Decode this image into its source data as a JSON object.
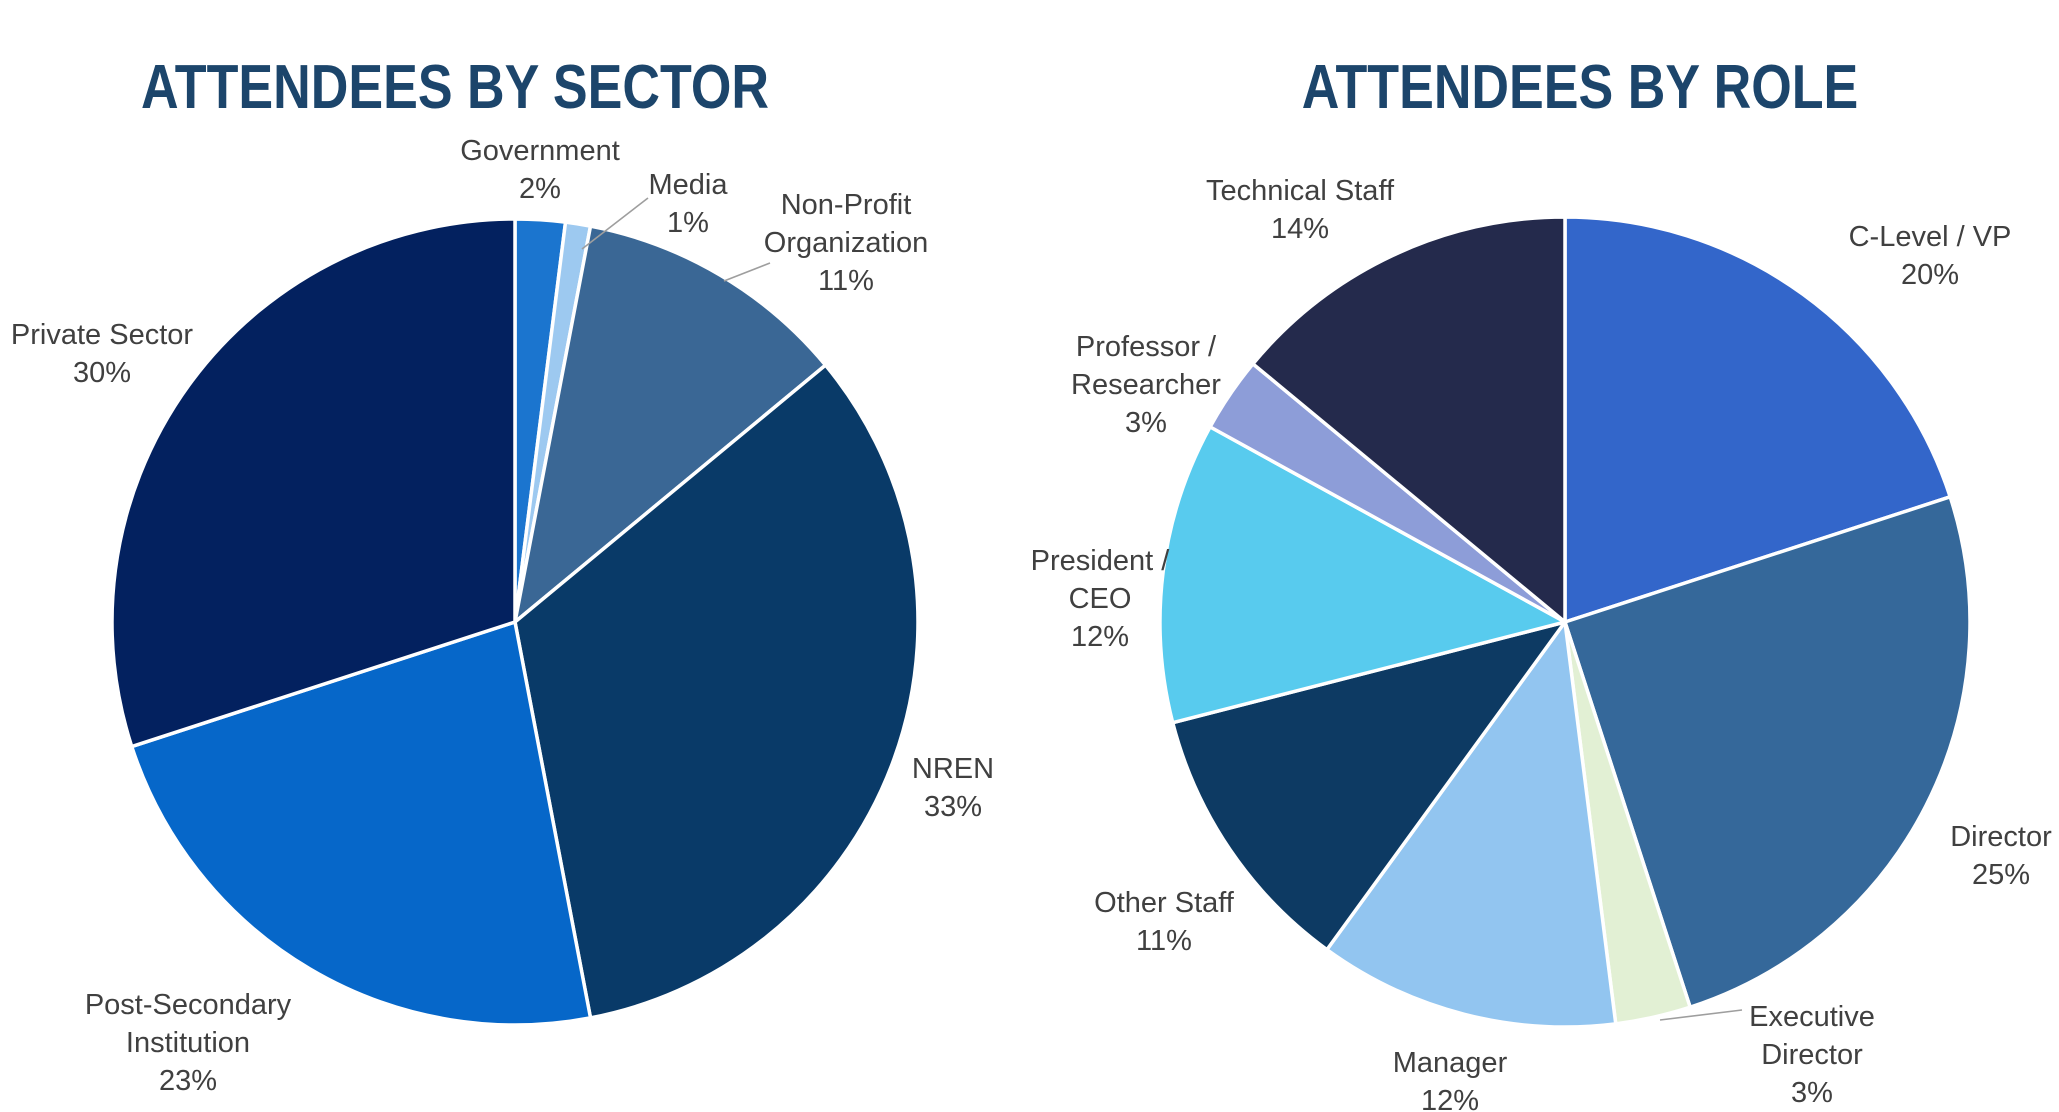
{
  "page_title": "Attendee demographics pie charts",
  "chart_data": [
    {
      "type": "pie",
      "title": "ATTENDEES BY SECTOR",
      "categories": [
        "Government",
        "Media",
        "Non-Profit Organization",
        "NREN",
        "Post-Secondary Institution",
        "Private Sector"
      ],
      "values": [
        2,
        1,
        11,
        33,
        23,
        30
      ],
      "value_labels": [
        "2%",
        "1%",
        "11%",
        "33%",
        "23%",
        "30%"
      ],
      "colors": [
        "#1B75CF",
        "#9DC9F0",
        "#3A6795",
        "#093A68",
        "#0667C9",
        "#03215F"
      ],
      "start_angle_deg": 0,
      "direction": "clockwise",
      "legend": "none",
      "label_style": "outside-end"
    },
    {
      "type": "pie",
      "title": "ATTENDEES BY ROLE",
      "categories": [
        "C-Level / VP",
        "Director",
        "Executive Director",
        "Manager",
        "Other Staff",
        "President / CEO",
        "Professor / Researcher",
        "Technical Staff"
      ],
      "values": [
        20,
        25,
        3,
        12,
        11,
        12,
        3,
        14
      ],
      "value_labels": [
        "20%",
        "25%",
        "3%",
        "12%",
        "11%",
        "12%",
        "3%",
        "14%"
      ],
      "colors": [
        "#3366CA",
        "#35689A",
        "#E2F0D4",
        "#92C5F0",
        "#0D3A63",
        "#58CBEE",
        "#8D9DD8",
        "#242A4C"
      ],
      "start_angle_deg": 0,
      "direction": "clockwise",
      "legend": "none",
      "label_style": "outside-end"
    }
  ],
  "style": {
    "title_color": "#1C456B",
    "label_color": "#404040",
    "slice_border_color": "#FFFFFF",
    "leader_line_color": "#9E9E9E",
    "background": "#FFFFFF"
  }
}
